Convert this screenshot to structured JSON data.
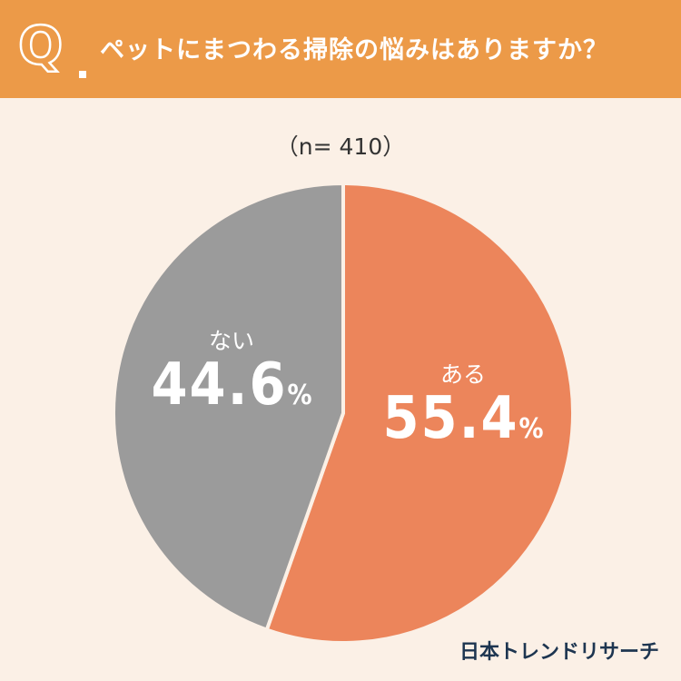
{
  "header": {
    "q_letter": "Q",
    "question": "ペットにまつわる掃除の悩みはありますか？"
  },
  "sample": "（n= 410）",
  "colors": {
    "header_bg": "#ec9a48",
    "background": "#fbf0e6",
    "aru": "#ec855b",
    "nai": "#9b9b9b",
    "brand": "#1d3550"
  },
  "chart_data": {
    "type": "pie",
    "slices": [
      {
        "label": "ある",
        "value": 55.4,
        "pct_text": "55.4",
        "unit": "%"
      },
      {
        "label": "ない",
        "value": 44.6,
        "pct_text": "44.6",
        "unit": "%"
      }
    ]
  },
  "brand": "日本トレンドリサーチ"
}
